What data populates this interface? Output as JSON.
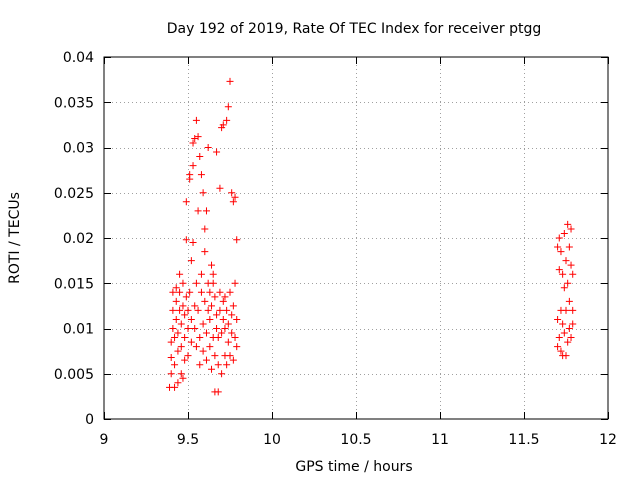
{
  "chart_data": {
    "type": "scatter",
    "title": "Day 192 of 2019, Rate Of TEC Index for receiver ptgg",
    "xlabel": "GPS time / hours",
    "ylabel": "ROTI / TECUs",
    "xlim": [
      9,
      12
    ],
    "ylim": [
      0,
      0.04
    ],
    "xticks": [
      "9",
      "9.5",
      "10",
      "10.5",
      "11",
      "11.5",
      "12"
    ],
    "yticks": [
      "0",
      "0.005",
      "0.01",
      "0.015",
      "0.02",
      "0.025",
      "0.03",
      "0.035",
      "0.04"
    ],
    "grid": true,
    "marker": "+",
    "color": "#ff0000",
    "series": [
      {
        "name": "ROTI",
        "points": [
          [
            9.39,
            0.0035
          ],
          [
            9.4,
            0.005
          ],
          [
            9.4,
            0.0068
          ],
          [
            9.4,
            0.0085
          ],
          [
            9.41,
            0.01
          ],
          [
            9.41,
            0.012
          ],
          [
            9.41,
            0.014
          ],
          [
            9.42,
            0.0035
          ],
          [
            9.42,
            0.006
          ],
          [
            9.42,
            0.009
          ],
          [
            9.43,
            0.011
          ],
          [
            9.43,
            0.013
          ],
          [
            9.43,
            0.0145
          ],
          [
            9.44,
            0.004
          ],
          [
            9.44,
            0.0075
          ],
          [
            9.44,
            0.0095
          ],
          [
            9.45,
            0.012
          ],
          [
            9.45,
            0.014
          ],
          [
            9.45,
            0.016
          ],
          [
            9.46,
            0.005
          ],
          [
            9.46,
            0.008
          ],
          [
            9.46,
            0.0105
          ],
          [
            9.47,
            0.0125
          ],
          [
            9.47,
            0.015
          ],
          [
            9.47,
            0.0045
          ],
          [
            9.48,
            0.0065
          ],
          [
            9.48,
            0.009
          ],
          [
            9.48,
            0.0115
          ],
          [
            9.49,
            0.0135
          ],
          [
            9.49,
            0.0198
          ],
          [
            9.49,
            0.024
          ],
          [
            9.5,
            0.007
          ],
          [
            9.5,
            0.01
          ],
          [
            9.5,
            0.012
          ],
          [
            9.51,
            0.014
          ],
          [
            9.51,
            0.0265
          ],
          [
            9.51,
            0.027
          ],
          [
            9.52,
            0.0085
          ],
          [
            9.52,
            0.011
          ],
          [
            9.52,
            0.0175
          ],
          [
            9.53,
            0.0195
          ],
          [
            9.53,
            0.028
          ],
          [
            9.53,
            0.0305
          ],
          [
            9.54,
            0.01
          ],
          [
            9.54,
            0.0125
          ],
          [
            9.54,
            0.031
          ],
          [
            9.55,
            0.008
          ],
          [
            9.55,
            0.015
          ],
          [
            9.55,
            0.033
          ],
          [
            9.56,
            0.012
          ],
          [
            9.56,
            0.023
          ],
          [
            9.56,
            0.0312
          ],
          [
            9.57,
            0.006
          ],
          [
            9.57,
            0.009
          ],
          [
            9.57,
            0.029
          ],
          [
            9.58,
            0.014
          ],
          [
            9.58,
            0.016
          ],
          [
            9.58,
            0.027
          ],
          [
            9.59,
            0.0075
          ],
          [
            9.59,
            0.0105
          ],
          [
            9.59,
            0.025
          ],
          [
            9.6,
            0.013
          ],
          [
            9.6,
            0.0185
          ],
          [
            9.6,
            0.021
          ],
          [
            9.61,
            0.0065
          ],
          [
            9.61,
            0.0095
          ],
          [
            9.61,
            0.023
          ],
          [
            9.62,
            0.012
          ],
          [
            9.62,
            0.015
          ],
          [
            9.62,
            0.03
          ],
          [
            9.63,
            0.008
          ],
          [
            9.63,
            0.011
          ],
          [
            9.63,
            0.014
          ],
          [
            9.64,
            0.0055
          ],
          [
            9.64,
            0.0125
          ],
          [
            9.64,
            0.017
          ],
          [
            9.65,
            0.009
          ],
          [
            9.65,
            0.015
          ],
          [
            9.65,
            0.016
          ],
          [
            9.66,
            0.003
          ],
          [
            9.66,
            0.007
          ],
          [
            9.66,
            0.0135
          ],
          [
            9.67,
            0.01
          ],
          [
            9.67,
            0.0115
          ],
          [
            9.67,
            0.0295
          ],
          [
            9.68,
            0.003
          ],
          [
            9.68,
            0.006
          ],
          [
            9.68,
            0.009
          ],
          [
            9.69,
            0.012
          ],
          [
            9.69,
            0.014
          ],
          [
            9.69,
            0.0255
          ],
          [
            9.7,
            0.005
          ],
          [
            9.7,
            0.0095
          ],
          [
            9.7,
            0.0322
          ],
          [
            9.71,
            0.011
          ],
          [
            9.71,
            0.013
          ],
          [
            9.71,
            0.0325
          ],
          [
            9.72,
            0.007
          ],
          [
            9.72,
            0.01
          ],
          [
            9.72,
            0.0135
          ],
          [
            9.73,
            0.006
          ],
          [
            9.73,
            0.012
          ],
          [
            9.73,
            0.033
          ],
          [
            9.74,
            0.0085
          ],
          [
            9.74,
            0.0105
          ],
          [
            9.74,
            0.0345
          ],
          [
            9.75,
            0.007
          ],
          [
            9.75,
            0.014
          ],
          [
            9.75,
            0.0373
          ],
          [
            9.76,
            0.0095
          ],
          [
            9.76,
            0.0115
          ],
          [
            9.76,
            0.025
          ],
          [
            9.77,
            0.0065
          ],
          [
            9.77,
            0.0125
          ],
          [
            9.77,
            0.024
          ],
          [
            9.78,
            0.009
          ],
          [
            9.78,
            0.015
          ],
          [
            9.78,
            0.0245
          ],
          [
            9.79,
            0.008
          ],
          [
            9.79,
            0.011
          ],
          [
            9.79,
            0.0198
          ],
          [
            11.7,
            0.008
          ],
          [
            11.7,
            0.011
          ],
          [
            11.7,
            0.019
          ],
          [
            11.71,
            0.009
          ],
          [
            11.71,
            0.0165
          ],
          [
            11.71,
            0.02
          ],
          [
            11.72,
            0.0075
          ],
          [
            11.72,
            0.012
          ],
          [
            11.72,
            0.0185
          ],
          [
            11.73,
            0.007
          ],
          [
            11.73,
            0.0105
          ],
          [
            11.73,
            0.016
          ],
          [
            11.74,
            0.0095
          ],
          [
            11.74,
            0.0145
          ],
          [
            11.74,
            0.0205
          ],
          [
            11.75,
            0.007
          ],
          [
            11.75,
            0.012
          ],
          [
            11.75,
            0.0175
          ],
          [
            11.76,
            0.0085
          ],
          [
            11.76,
            0.015
          ],
          [
            11.76,
            0.0215
          ],
          [
            11.77,
            0.01
          ],
          [
            11.77,
            0.013
          ],
          [
            11.77,
            0.019
          ],
          [
            11.78,
            0.009
          ],
          [
            11.78,
            0.017
          ],
          [
            11.78,
            0.021
          ],
          [
            11.79,
            0.0105
          ],
          [
            11.79,
            0.012
          ],
          [
            11.79,
            0.016
          ]
        ]
      }
    ]
  }
}
